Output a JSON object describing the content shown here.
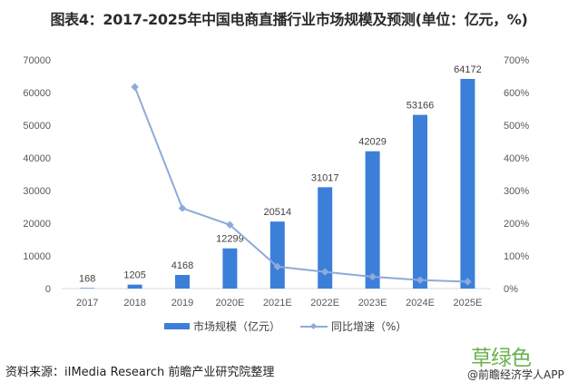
{
  "title": "图表4：2017-2025年中国电商直播行业市场规模及预测(单位：亿元，%)",
  "chart_data": {
    "type": "bar+line",
    "title": "图表4：2017-2025年中国电商直播行业市场规模及预测(单位：亿元，%)",
    "categories": [
      "2017",
      "2018",
      "2019",
      "2020E",
      "2021E",
      "2022E",
      "2023E",
      "2024E",
      "2025E"
    ],
    "series": [
      {
        "name": "市场规模（亿元）",
        "type": "bar",
        "axis": "left",
        "color": "#3c7fd9",
        "values": [
          168,
          1205,
          4168,
          12299,
          20514,
          31017,
          42029,
          53166,
          64172
        ]
      },
      {
        "name": "同比增速（%）",
        "type": "line",
        "axis": "right",
        "color": "#8eaadb",
        "values": [
          null,
          617,
          246,
          195,
          67,
          51,
          36,
          26,
          21
        ]
      }
    ],
    "left_axis": {
      "ylim": [
        0,
        70000
      ],
      "ticks": [
        "0",
        "10000",
        "20000",
        "30000",
        "40000",
        "50000",
        "60000",
        "70000"
      ]
    },
    "right_axis": {
      "ylim": [
        0,
        700
      ],
      "ticks": [
        "0%",
        "100%",
        "200%",
        "300%",
        "400%",
        "500%",
        "600%",
        "700%"
      ]
    },
    "grid": false,
    "legend_position": "bottom"
  },
  "legend": {
    "bar_label": "市场规模（亿元）",
    "line_label": "同比增速（%）"
  },
  "source": "资料来源：iIMedia Research 前瞻产业研究院整理",
  "watermark": {
    "brand": "草绿色",
    "sub": "@前瞻经济学人APP"
  }
}
